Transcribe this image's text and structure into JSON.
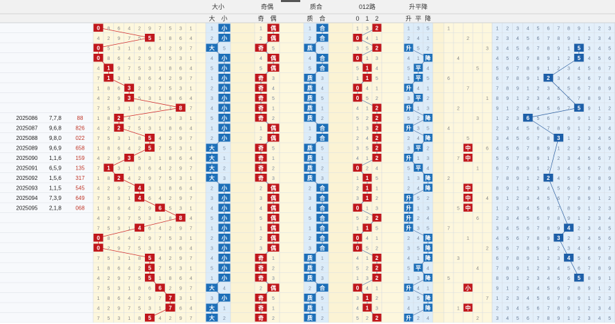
{
  "header": {
    "groups": [
      "大小",
      "奇偶",
      "质合",
      "012路",
      "升平降"
    ],
    "sub_headers": {
      "size": [
        "大",
        "小"
      ],
      "parity": [
        "奇",
        "偶"
      ],
      "prime": [
        "质",
        "合"
      ],
      "route": [
        "0",
        "1",
        "2"
      ],
      "trend": [
        "升",
        "平",
        "降"
      ]
    }
  },
  "visible_periods": [
    {
      "period": "2025086",
      "numbers": "7,7,8",
      "result": "88"
    },
    {
      "period": "2025087",
      "numbers": "9,6,8",
      "result": "826"
    },
    {
      "period": "2025088",
      "numbers": "9,8,0",
      "result": "022"
    },
    {
      "period": "2025089",
      "numbers": "9,6,9",
      "result": "658"
    },
    {
      "period": "2025090",
      "numbers": "1,1,6",
      "result": "159"
    },
    {
      "period": "2025091",
      "numbers": "6,5,9",
      "result": "135"
    },
    {
      "period": "2025092",
      "numbers": "1,5,6",
      "result": "317"
    },
    {
      "period": "2025093",
      "numbers": "1,1,5",
      "result": "545"
    },
    {
      "period": "2025094",
      "numbers": "7,3,9",
      "result": "649"
    },
    {
      "period": "2025095",
      "numbers": "2,1,8",
      "result": "068"
    }
  ],
  "chart_data": {
    "type": "table",
    "rows_total": 30,
    "hit_digit": [
      0,
      5,
      0,
      0,
      1,
      1,
      3,
      3,
      8,
      2,
      2,
      5,
      5,
      3,
      1,
      2,
      4,
      4,
      6,
      8,
      4,
      0,
      0,
      5,
      5,
      5,
      6,
      7,
      7,
      5
    ],
    "size": [
      "小",
      "小",
      "大",
      "小",
      "小",
      "小",
      "小",
      "小",
      "小",
      "小",
      "小",
      "小",
      "大",
      "大",
      "大",
      "大",
      "小",
      "小",
      "小",
      "小",
      "小",
      "小",
      "小",
      "小",
      "小",
      "小",
      "大",
      "小",
      "大",
      "大"
    ],
    "parity": [
      "偶",
      "偶",
      "奇",
      "偶",
      "偶",
      "奇",
      "奇",
      "奇",
      "奇",
      "奇",
      "偶",
      "偶",
      "奇",
      "奇",
      "奇",
      "奇",
      "偶",
      "偶",
      "偶",
      "偶",
      "偶",
      "偶",
      "偶",
      "奇",
      "奇",
      "奇",
      "偶",
      "奇",
      "奇",
      "奇"
    ],
    "prime": [
      "合",
      "合",
      "质",
      "合",
      "合",
      "质",
      "质",
      "质",
      "质",
      "质",
      "合",
      "合",
      "质",
      "质",
      "质",
      "质",
      "合",
      "合",
      "合",
      "合",
      "合",
      "合",
      "合",
      "质",
      "质",
      "质",
      "合",
      "质",
      "质",
      "质"
    ],
    "route": [
      "2",
      "0",
      "2",
      "0",
      "1",
      "1",
      "0",
      "0",
      "2",
      "2",
      "2",
      "2",
      "2",
      "2",
      "0",
      "1",
      "1",
      "1",
      "0",
      "2",
      "1",
      "0",
      "0",
      "2",
      "2",
      "2",
      "0",
      "1",
      "1",
      "2"
    ],
    "trend": [
      "",
      "",
      "升",
      "降",
      "平",
      "平",
      "升",
      "平",
      "升",
      "降",
      "升",
      "降",
      "平",
      "升",
      "平",
      "降",
      "降",
      "升",
      "升",
      "升",
      "升",
      "降",
      "降",
      "降",
      "平",
      "降",
      "升",
      "降",
      "降",
      "升"
    ],
    "right_panel_hits": [
      "",
      "",
      "5",
      "5",
      "",
      "2",
      "",
      "",
      "5",
      "6",
      "",
      "3",
      "",
      "",
      "",
      "2",
      "",
      "",
      "",
      "",
      "4",
      "3",
      "",
      "4",
      "",
      "5",
      "",
      "",
      "",
      ""
    ]
  }
}
